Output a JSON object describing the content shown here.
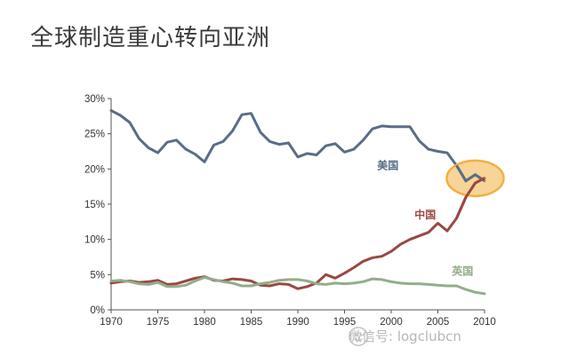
{
  "page": {
    "title": "全球制造重心转向亚洲"
  },
  "watermark": {
    "text": "微信号: logclubcn"
  },
  "chart_data": {
    "type": "line",
    "title": "全球制造重心转向亚洲",
    "xlabel": "",
    "ylabel": "",
    "xlim": [
      1970,
      2010
    ],
    "ylim": [
      0,
      30
    ],
    "x_ticks": [
      "1970",
      "1975",
      "1980",
      "1985",
      "1990",
      "1995",
      "2000",
      "2005",
      "2010"
    ],
    "y_ticks": [
      "0%",
      "5%",
      "10%",
      "15%",
      "20%",
      "25%",
      "30%"
    ],
    "x": [
      1970,
      1971,
      1972,
      1973,
      1974,
      1975,
      1976,
      1977,
      1978,
      1979,
      1980,
      1981,
      1982,
      1983,
      1984,
      1985,
      1986,
      1987,
      1988,
      1989,
      1990,
      1991,
      1992,
      1993,
      1994,
      1995,
      1996,
      1997,
      1998,
      1999,
      2000,
      2001,
      2002,
      2003,
      2004,
      2005,
      2006,
      2007,
      2008,
      2009,
      2010
    ],
    "series": [
      {
        "name": "美国",
        "color": "#5a6d86",
        "values": [
          28.3,
          27.6,
          26.6,
          24.3,
          23.0,
          22.3,
          23.8,
          24.1,
          22.8,
          22.1,
          21.0,
          23.4,
          23.9,
          25.4,
          27.7,
          27.9,
          25.2,
          23.9,
          23.5,
          23.7,
          21.7,
          22.2,
          22.0,
          23.3,
          23.6,
          22.4,
          22.8,
          24.1,
          25.7,
          26.1,
          26.0,
          26.0,
          26.0,
          24.0,
          22.8,
          22.5,
          22.3,
          20.5,
          18.3,
          19.2,
          18.3
        ]
      },
      {
        "name": "中国",
        "color": "#9a4843",
        "values": [
          3.8,
          4.0,
          4.1,
          3.9,
          4.0,
          4.2,
          3.6,
          3.7,
          4.1,
          4.5,
          4.7,
          4.2,
          4.1,
          4.4,
          4.3,
          4.1,
          3.5,
          3.4,
          3.7,
          3.6,
          3.0,
          3.3,
          3.8,
          5.0,
          4.5,
          5.2,
          6.0,
          6.9,
          7.4,
          7.6,
          8.3,
          9.3,
          10.0,
          10.5,
          11.0,
          12.3,
          11.2,
          13.0,
          16.0,
          18.0,
          18.7
        ]
      },
      {
        "name": "英国",
        "color": "#93ad8b",
        "values": [
          4.1,
          4.2,
          4.0,
          3.7,
          3.6,
          3.9,
          3.3,
          3.3,
          3.5,
          4.1,
          4.6,
          4.3,
          4.0,
          3.8,
          3.4,
          3.4,
          3.7,
          3.9,
          4.2,
          4.3,
          4.3,
          4.1,
          3.7,
          3.6,
          3.8,
          3.7,
          3.8,
          4.0,
          4.4,
          4.3,
          4.0,
          3.8,
          3.7,
          3.7,
          3.6,
          3.5,
          3.4,
          3.4,
          2.9,
          2.5,
          2.3
        ]
      }
    ],
    "annotation": {
      "type": "circle-highlight",
      "x": 2009,
      "y": 18.8,
      "color": "#f3b043"
    },
    "grid": false,
    "legend": "inline-labels"
  }
}
